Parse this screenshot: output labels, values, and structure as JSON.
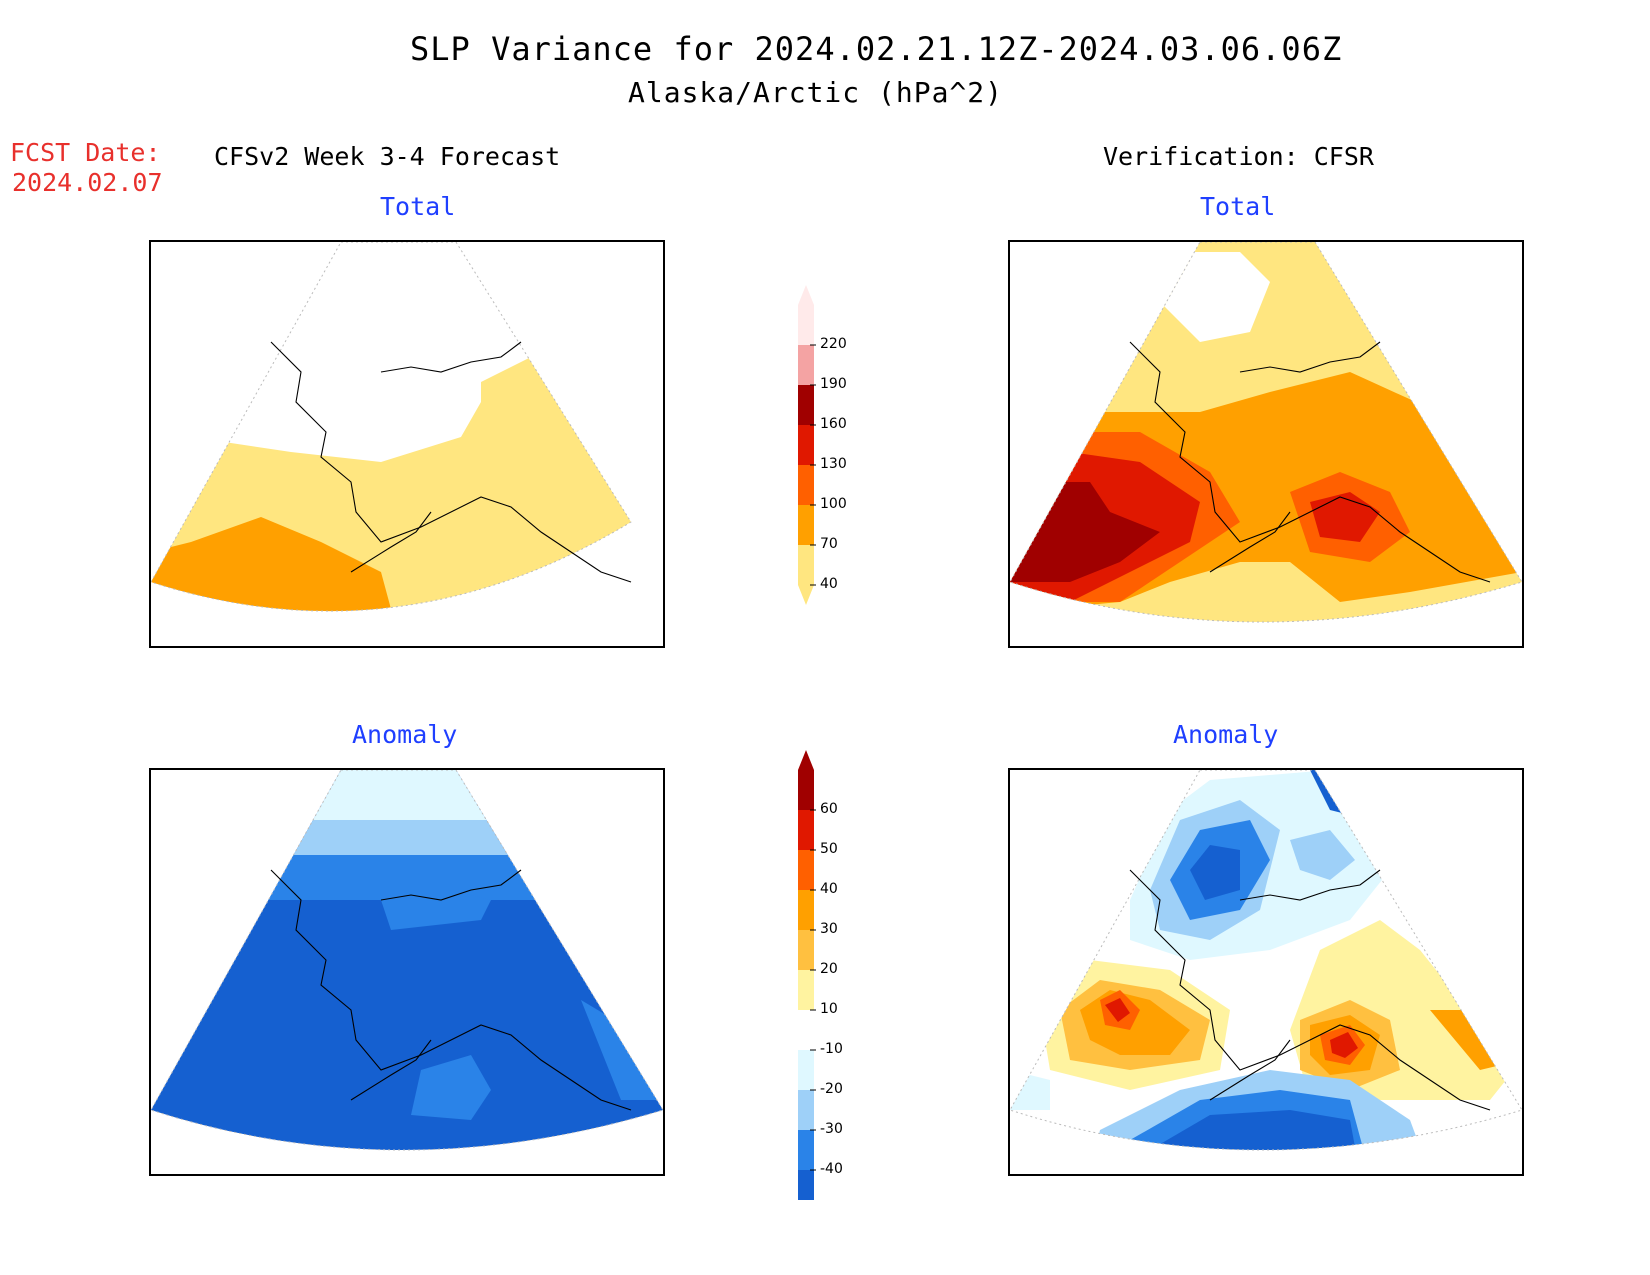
{
  "header": {
    "title": "SLP Variance for 2024.02.21.12Z-2024.03.06.06Z",
    "subtitle": "Alaska/Arctic (hPa^2)"
  },
  "fcst": {
    "line1": "FCST Date:",
    "line2": "2024.02.07"
  },
  "columns": {
    "left": "CFSv2 Week 3-4 Forecast",
    "right": "Verification: CFSR"
  },
  "panels": {
    "tl": "Total",
    "tr": "Total",
    "bl": "Anomaly",
    "br": "Anomaly"
  },
  "colorbars": {
    "total": {
      "labels": [
        "220",
        "190",
        "160",
        "130",
        "100",
        "70",
        "40"
      ],
      "colors": [
        "#ffeaea",
        "#f4a3a3",
        "#a00000",
        "#e01800",
        "#ff6000",
        "#ffa000",
        "#ffe680"
      ]
    },
    "anomaly": {
      "labels": [
        "60",
        "50",
        "40",
        "30",
        "20",
        "10",
        "-10",
        "-20",
        "-30",
        "-40"
      ],
      "colors": [
        "#a00000",
        "#e01800",
        "#ff6000",
        "#ffa000",
        "#ffc040",
        "#fff3a0",
        "#ffffff",
        "#dff8ff",
        "#9ed0f8",
        "#2a83e8",
        "#1560d0"
      ]
    }
  },
  "palette": {
    "yellow": "#ffe680",
    "orange": "#ffa000",
    "darkorange": "#ff6000",
    "red": "#e01800",
    "darkred": "#a00000",
    "lightcyan": "#dff8ff",
    "lightblue": "#9ed0f8",
    "blue": "#2a83e8",
    "darkblue": "#1560d0"
  }
}
